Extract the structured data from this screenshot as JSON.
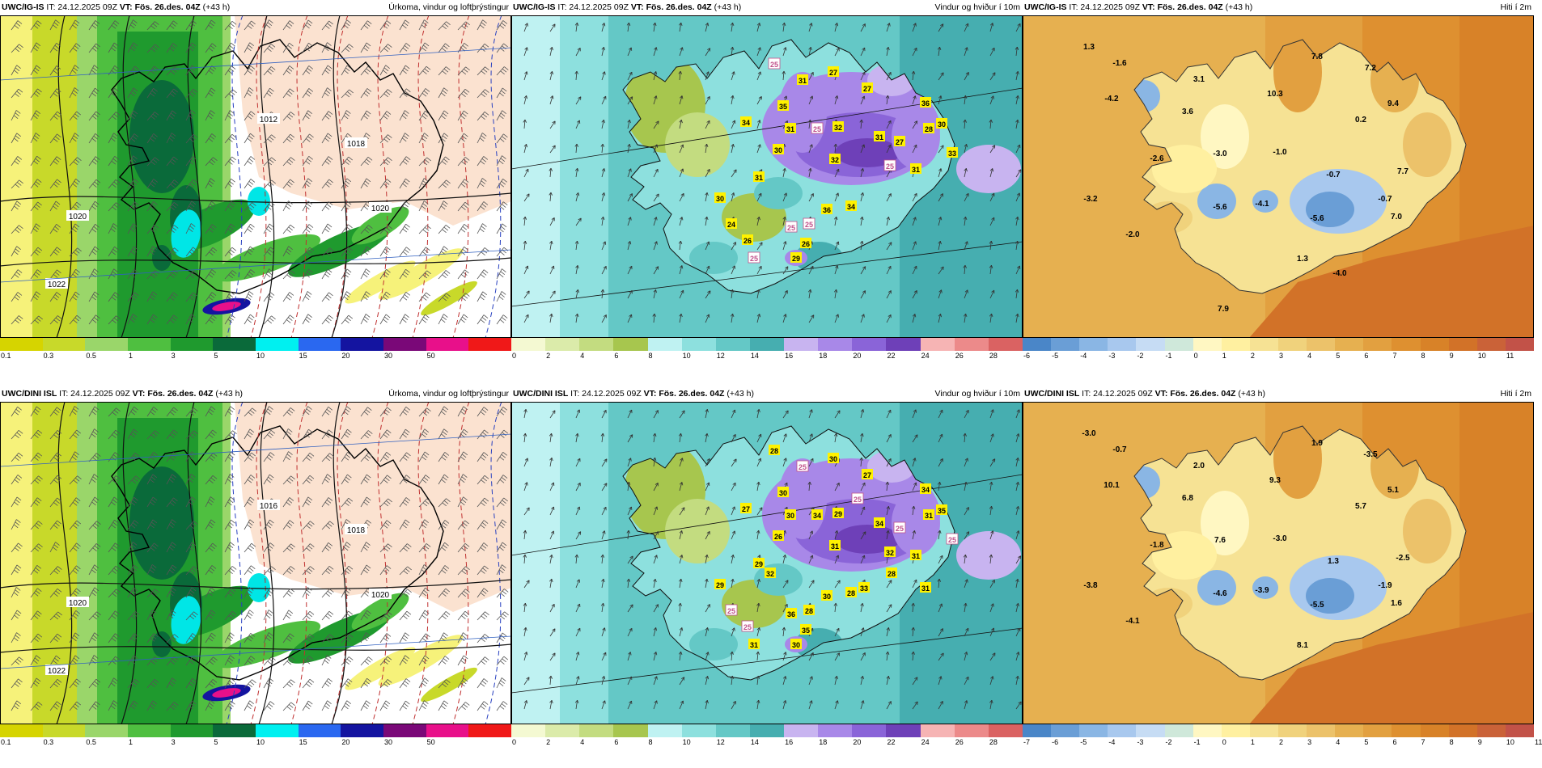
{
  "panels": [
    {
      "kind": "precip",
      "model": "UWC/IG-IS",
      "it": "24.12.2025 09Z",
      "vt": "Fös. 26.des. 04Z",
      "lead": "(+43 h)",
      "title": "Úrkoma, vindur og loftþrýstingur",
      "ticks": [
        "0.1",
        "0.3",
        "0.5",
        "1",
        "3",
        "5",
        "10",
        "15",
        "20",
        "30",
        "50"
      ],
      "pressure_labels": [
        "1012",
        "1022",
        "1020",
        "1020",
        "1018"
      ]
    },
    {
      "kind": "wind",
      "model": "UWC/IG-IS",
      "it": "24.12.2025 09Z",
      "vt": "Fös. 26.des. 04Z",
      "lead": "(+43 h)",
      "title": "Vindur og hviður í 10m",
      "ticks": [
        "0",
        "2",
        "4",
        "6",
        "8",
        "10",
        "12",
        "14",
        "16",
        "18",
        "20",
        "22",
        "24",
        "26",
        "28"
      ],
      "gusts": [
        "25",
        "31",
        "27",
        "27",
        "36",
        "35",
        "31",
        "25",
        "32",
        "31",
        "27",
        "28",
        "30",
        "33",
        "34",
        "30",
        "32",
        "25",
        "31",
        "36",
        "34",
        "25",
        "25",
        "26",
        "29",
        "26",
        "25",
        "24",
        "30",
        "31"
      ]
    },
    {
      "kind": "temp",
      "model": "UWC/IG-IS",
      "it": "24.12.2025 09Z",
      "vt": "Fös. 26.des. 04Z",
      "lead": "(+43 h)",
      "title": "Hiti í 2m",
      "ticks": [
        "-6",
        "-5",
        "-4",
        "-3",
        "-2",
        "-1",
        "0",
        "1",
        "2",
        "3",
        "4",
        "5",
        "6",
        "7",
        "8",
        "9",
        "10",
        "11"
      ],
      "temps": [
        "1.3",
        "-1.6",
        "-4.2",
        "3.1",
        "3.6",
        "10.3",
        "7.8",
        "7.2",
        "9.4",
        "0.2",
        "-3.0",
        "-2.6",
        "-1.0",
        "-0.7",
        "-3.2",
        "-5.6",
        "-4.1",
        "-5.6",
        "-0.7",
        "7.7",
        "7.0",
        "-2.0",
        "1.3",
        "-4.0",
        "7.9"
      ]
    },
    {
      "kind": "precip",
      "model": "UWC/DINI ISL",
      "it": "24.12.2025 09Z",
      "vt": "Fös. 26.des. 04Z",
      "lead": "(+43 h)",
      "title": "Úrkoma, vindur og loftþrýstingur",
      "ticks": [
        "0.1",
        "0.3",
        "0.5",
        "1",
        "3",
        "5",
        "10",
        "15",
        "20",
        "30",
        "50"
      ],
      "pressure_labels": [
        "1016",
        "1022",
        "1020",
        "1020",
        "1018"
      ]
    },
    {
      "kind": "wind",
      "model": "UWC/DINI ISL",
      "it": "24.12.2025 09Z",
      "vt": "Fös. 26.des. 04Z",
      "lead": "(+43 h)",
      "title": "Vindur og hviður í 10m",
      "ticks": [
        "0",
        "2",
        "4",
        "6",
        "8",
        "10",
        "12",
        "14",
        "16",
        "18",
        "20",
        "22",
        "24",
        "26",
        "28"
      ],
      "gusts": [
        "28",
        "25",
        "30",
        "27",
        "34",
        "30",
        "30",
        "34",
        "29",
        "34",
        "25",
        "31",
        "35",
        "25",
        "27",
        "26",
        "31",
        "32",
        "31",
        "30",
        "28",
        "28",
        "36",
        "35",
        "30",
        "25",
        "31",
        "25",
        "29",
        "29",
        "32",
        "33",
        "28",
        "25",
        "31"
      ]
    },
    {
      "kind": "temp",
      "model": "UWC/DINI ISL",
      "it": "24.12.2025 09Z",
      "vt": "Fös. 26.des. 04Z",
      "lead": "(+43 h)",
      "title": "Hiti í 2m",
      "ticks": [
        "-7",
        "-6",
        "-5",
        "-4",
        "-3",
        "-2",
        "-1",
        "0",
        "1",
        "2",
        "3",
        "4",
        "5",
        "6",
        "7",
        "8",
        "9",
        "10",
        "11"
      ],
      "temps": [
        "-3.0",
        "-0.7",
        "10.1",
        "2.0",
        "6.8",
        "9.3",
        "1.9",
        "-3.5",
        "5.1",
        "5.7",
        "7.6",
        "-1.8",
        "-3.0",
        "1.3",
        "-3.8",
        "-4.6",
        "-3.9",
        "-5.5",
        "-1.9",
        "-2.5",
        "1.6",
        "-4.1",
        "8.1"
      ]
    }
  ],
  "colors": {
    "precip": [
      "#d6d400",
      "#c8d92a",
      "#9ad66a",
      "#4fbf40",
      "#1f9a2e",
      "#0a6a3a",
      "#00f0f0",
      "#2a68f0",
      "#1414a0",
      "#7a0878",
      "#e8108a",
      "#f01818"
    ],
    "wind": [
      "#f4f9d2",
      "#dbebaa",
      "#c3dc80",
      "#a7c64e",
      "#bff2f2",
      "#8de0de",
      "#64c8c6",
      "#46aeb0",
      "#c8b4f0",
      "#a888e8",
      "#8a64d8",
      "#6e40b8",
      "#f6b4b4",
      "#ec8a8a",
      "#da6262"
    ],
    "temp": [
      "#4a86c8",
      "#6a9ed6",
      "#8ab6e4",
      "#a8c8ee",
      "#c6dcf4",
      "#cfe8da",
      "#fff7c2",
      "#fff0a0",
      "#f6e294",
      "#f0d27c",
      "#ecc26a",
      "#e6b050",
      "#e2a040",
      "#de9030",
      "#d88228",
      "#d27228",
      "#ca6238",
      "#c25248"
    ]
  }
}
